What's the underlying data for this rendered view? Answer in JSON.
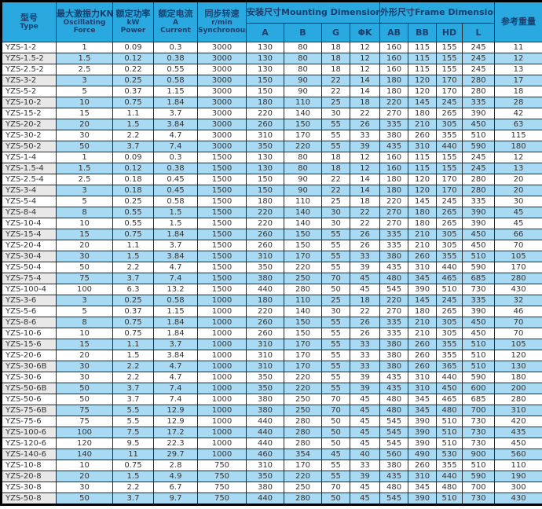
{
  "colors": {
    "header_bg": "#29a9df",
    "header_text": "#1c3f6e",
    "stripe_bg": "#a9daf3",
    "type_cell_stripe_bg": "#e8e8e8",
    "border": "#000000",
    "data_text": "#333333"
  },
  "table": {
    "header": {
      "type_zh": "型号",
      "type_en": "Type",
      "force_zh": "最大激振力KN",
      "force_en1": "Oscillating",
      "force_en2": "Force",
      "power_zh": "额定功率",
      "power_unit": "kW",
      "power_en": "Power",
      "current_zh": "额定电流",
      "current_unit": "A",
      "current_en": "Current",
      "speed_zh": "同步转速",
      "speed_unit": "r/min",
      "speed_en": "Synchronous Speed",
      "mounting_group": "安装尺寸Mounting Dimensions",
      "frame_group": "外形尺寸Frame Dimensions",
      "weight": "参考重量",
      "sub_columns": [
        "A",
        "B",
        "G",
        "ΦK",
        "AB",
        "BB",
        "HD",
        "L"
      ]
    },
    "rows": [
      [
        "YZS-1-2",
        "1",
        "0.09",
        "0.3",
        "3000",
        "130",
        "80",
        "18",
        "12",
        "160",
        "115",
        "155",
        "245",
        "11"
      ],
      [
        "YZS-1.5-2",
        "1.5",
        "0.12",
        "0.38",
        "3000",
        "130",
        "80",
        "18",
        "12",
        "160",
        "115",
        "155",
        "245",
        "12"
      ],
      [
        "YZS-2.5-2",
        "2.5",
        "0.22",
        "0.55",
        "3000",
        "130",
        "80",
        "18",
        "12",
        "160",
        "115",
        "155",
        "245",
        "13"
      ],
      [
        "YZS-3-2",
        "3",
        "0.25",
        "0.58",
        "3000",
        "150",
        "90",
        "22",
        "14",
        "180",
        "120",
        "170",
        "280",
        "17"
      ],
      [
        "YZS-5-2",
        "5",
        "0.37",
        "1.15",
        "3000",
        "150",
        "90",
        "22",
        "14",
        "180",
        "120",
        "170",
        "280",
        "18"
      ],
      [
        "YZS-10-2",
        "10",
        "0.75",
        "1.84",
        "3000",
        "180",
        "110",
        "25",
        "18",
        "220",
        "145",
        "245",
        "335",
        "28"
      ],
      [
        "YZS-15-2",
        "15",
        "1.1",
        "3.7",
        "3000",
        "220",
        "140",
        "30",
        "22",
        "270",
        "180",
        "265",
        "390",
        "42"
      ],
      [
        "YZS-20-2",
        "20",
        "1.5",
        "3.84",
        "3000",
        "260",
        "150",
        "55",
        "26",
        "335",
        "210",
        "305",
        "450",
        "63"
      ],
      [
        "YZS-30-2",
        "30",
        "2.2",
        "4.7",
        "3000",
        "310",
        "170",
        "55",
        "33",
        "380",
        "260",
        "355",
        "510",
        "115"
      ],
      [
        "YZS-50-2",
        "50",
        "3.7",
        "7.4",
        "3000",
        "350",
        "220",
        "55",
        "39",
        "435",
        "310",
        "440",
        "590",
        "180"
      ],
      [
        "YZS-1-4",
        "1",
        "0.09",
        "0.3",
        "1500",
        "130",
        "80",
        "18",
        "12",
        "160",
        "115",
        "155",
        "245",
        "12"
      ],
      [
        "YZS-1.5-4",
        "1.5",
        "0.12",
        "0.38",
        "1500",
        "130",
        "80",
        "18",
        "12",
        "160",
        "115",
        "155",
        "245",
        "13"
      ],
      [
        "YZS-2.5-4",
        "2.5",
        "0.18",
        "0.45",
        "1500",
        "150",
        "90",
        "22",
        "14",
        "180",
        "120",
        "170",
        "280",
        "20"
      ],
      [
        "YZS-3-4",
        "3",
        "0.18",
        "0.45",
        "1500",
        "150",
        "90",
        "22",
        "14",
        "180",
        "120",
        "170",
        "280",
        "20"
      ],
      [
        "YZS-5-4",
        "5",
        "0.25",
        "0.58",
        "1500",
        "180",
        "110",
        "25",
        "18",
        "220",
        "145",
        "245",
        "335",
        "30"
      ],
      [
        "YZS-8-4",
        "8",
        "0.55",
        "1.5",
        "1500",
        "220",
        "140",
        "30",
        "22",
        "270",
        "180",
        "265",
        "390",
        "45"
      ],
      [
        "YZS-10-4",
        "10",
        "0.55",
        "1.5",
        "1500",
        "220",
        "140",
        "30",
        "22",
        "270",
        "180",
        "265",
        "390",
        "45"
      ],
      [
        "YZS-15-4",
        "15",
        "0.75",
        "1.84",
        "1500",
        "260",
        "150",
        "55",
        "26",
        "335",
        "210",
        "305",
        "450",
        "66"
      ],
      [
        "YZS-20-4",
        "20",
        "1.1",
        "3.7",
        "1500",
        "260",
        "150",
        "55",
        "26",
        "335",
        "210",
        "305",
        "450",
        "70"
      ],
      [
        "YZS-30-4",
        "30",
        "1.5",
        "3.84",
        "1500",
        "310",
        "170",
        "55",
        "33",
        "380",
        "260",
        "355",
        "510",
        "105"
      ],
      [
        "YZS-50-4",
        "50",
        "2.2",
        "4.7",
        "1500",
        "350",
        "220",
        "55",
        "39",
        "435",
        "310",
        "440",
        "590",
        "170"
      ],
      [
        "YZS-75-4",
        "75",
        "3.7",
        "7.4",
        "1500",
        "380",
        "250",
        "70",
        "45",
        "480",
        "345",
        "465",
        "685",
        "280"
      ],
      [
        "YZS-100-4",
        "100",
        "6.3",
        "13.2",
        "1500",
        "440",
        "280",
        "50",
        "45",
        "545",
        "390",
        "510",
        "730",
        "430"
      ],
      [
        "YZS-3-6",
        "3",
        "0.25",
        "0.58",
        "1000",
        "180",
        "110",
        "25",
        "18",
        "220",
        "145",
        "245",
        "335",
        "32"
      ],
      [
        "YZS-5-6",
        "5",
        "0.37",
        "1.15",
        "1000",
        "220",
        "140",
        "30",
        "22",
        "270",
        "180",
        "265",
        "390",
        "46"
      ],
      [
        "YZS-8-6",
        "8",
        "0.75",
        "1.84",
        "1000",
        "260",
        "150",
        "55",
        "26",
        "335",
        "210",
        "305",
        "450",
        "70"
      ],
      [
        "YZS-10-6",
        "10",
        "0.75",
        "1.84",
        "1000",
        "260",
        "150",
        "55",
        "26",
        "335",
        "210",
        "305",
        "450",
        "70"
      ],
      [
        "YZS-15-6",
        "15",
        "1.1",
        "3.7",
        "1000",
        "310",
        "170",
        "55",
        "33",
        "380",
        "260",
        "355",
        "510",
        "105"
      ],
      [
        "YZS-20-6",
        "20",
        "1.5",
        "3.84",
        "1000",
        "310",
        "170",
        "55",
        "33",
        "380",
        "260",
        "355",
        "510",
        "120"
      ],
      [
        "YZS-30-6B",
        "30",
        "2.2",
        "4.7",
        "1000",
        "310",
        "170",
        "55",
        "33",
        "380",
        "260",
        "365",
        "510",
        "130"
      ],
      [
        "YZS-30-6",
        "30",
        "2.2",
        "4.7",
        "1000",
        "350",
        "220",
        "55",
        "39",
        "435",
        "310",
        "440",
        "590",
        "180"
      ],
      [
        "YZS-50-6B",
        "50",
        "3.7",
        "7.4",
        "1000",
        "350",
        "220",
        "55",
        "39",
        "435",
        "310",
        "450",
        "600",
        "200"
      ],
      [
        "YZS-50-6",
        "50",
        "3.7",
        "7.4",
        "1000",
        "380",
        "250",
        "70",
        "45",
        "480",
        "345",
        "465",
        "685",
        "280"
      ],
      [
        "YZS-75-6B",
        "75",
        "5.5",
        "12.9",
        "1000",
        "380",
        "250",
        "70",
        "45",
        "480",
        "345",
        "480",
        "700",
        "310"
      ],
      [
        "YZS-75-6",
        "75",
        "5.5",
        "12.9",
        "1000",
        "440",
        "280",
        "50",
        "45",
        "545",
        "390",
        "510",
        "730",
        "420"
      ],
      [
        "YZS-100-6",
        "100",
        "7.5",
        "17.2",
        "1000",
        "440",
        "280",
        "50",
        "45",
        "545",
        "390",
        "510",
        "730",
        "435"
      ],
      [
        "YZS-120-6",
        "120",
        "9.5",
        "22.3",
        "1000",
        "440",
        "280",
        "50",
        "45",
        "545",
        "390",
        "510",
        "730",
        "450"
      ],
      [
        "YZS-140-6",
        "140",
        "11",
        "29.7",
        "1000",
        "460",
        "354",
        "45",
        "40",
        "560",
        "490",
        "530",
        "900",
        "560"
      ],
      [
        "YZS-10-8",
        "10",
        "0.75",
        "2.8",
        "750",
        "310",
        "170",
        "55",
        "33",
        "380",
        "260",
        "355",
        "510",
        "110"
      ],
      [
        "YZS-20-8",
        "20",
        "1.5",
        "4.9",
        "750",
        "350",
        "220",
        "55",
        "39",
        "435",
        "310",
        "440",
        "590",
        "190"
      ],
      [
        "YZS-30-8",
        "30",
        "2.2",
        "6.7",
        "750",
        "380",
        "250",
        "70",
        "45",
        "480",
        "345",
        "480",
        "700",
        "300"
      ],
      [
        "YZS-50-8",
        "50",
        "3.7",
        "9.7",
        "750",
        "440",
        "280",
        "50",
        "45",
        "545",
        "390",
        "510",
        "730",
        "430"
      ]
    ]
  }
}
